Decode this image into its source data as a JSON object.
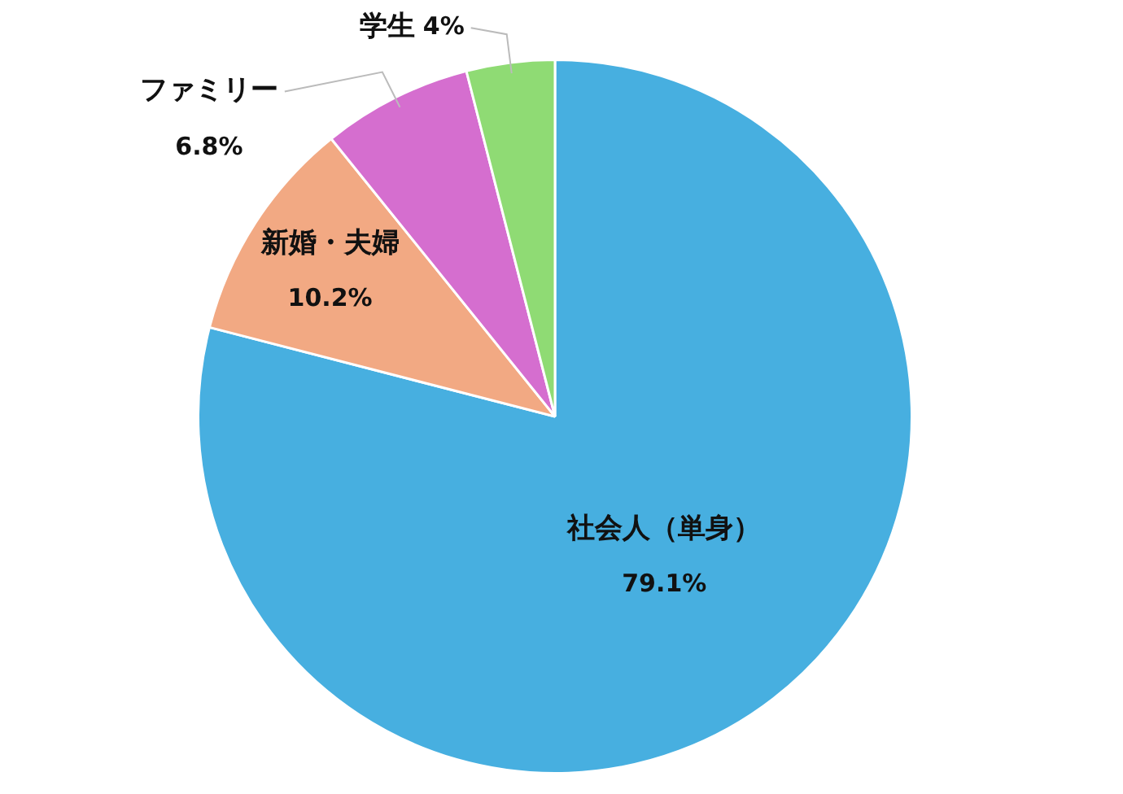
{
  "chart_data": {
    "type": "pie",
    "categories": [
      "社会人（単身）",
      "新婚・夫婦",
      "ファミリー",
      "学生"
    ],
    "values": [
      79.1,
      10.2,
      6.8,
      4
    ],
    "colors": [
      "#47afe0",
      "#f2a983",
      "#d56ecf",
      "#8fdb74"
    ],
    "value_labels": [
      "79.1%",
      "10.2%",
      "6.8%",
      "4%"
    ],
    "legend": false
  }
}
